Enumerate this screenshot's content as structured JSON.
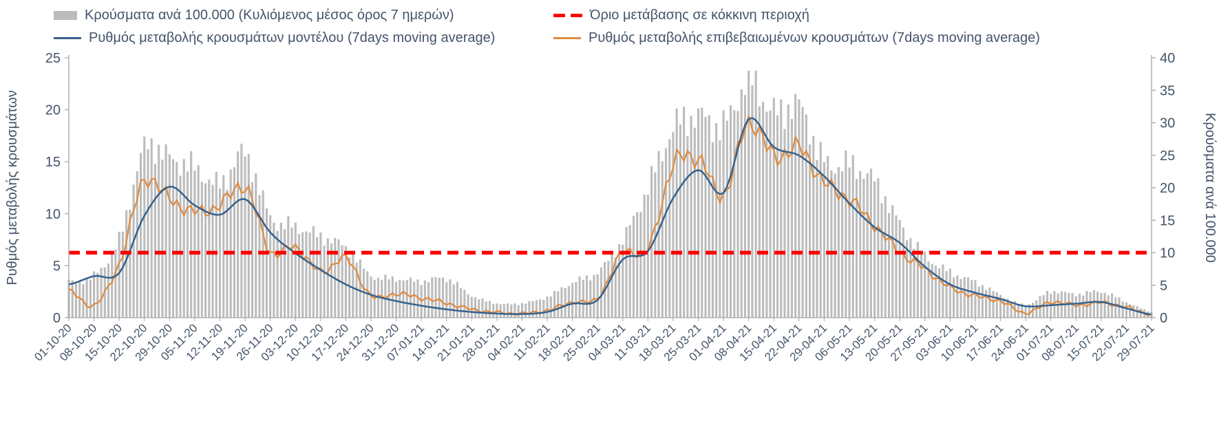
{
  "page": {
    "background": "#ffffff",
    "text_color": "#44546A"
  },
  "legend": {
    "position": "top",
    "items": [
      {
        "id": "cases-bars",
        "series_index": 0,
        "swatch": "bar"
      },
      {
        "id": "threshold",
        "series_index": 3,
        "swatch": "dashed-line"
      },
      {
        "id": "model-line",
        "series_index": 1,
        "swatch": "line"
      },
      {
        "id": "confirmed-line",
        "series_index": 2,
        "swatch": "line"
      }
    ]
  },
  "chart_data": {
    "type": "bar",
    "title": "",
    "legend_position": "top",
    "grid": false,
    "categories": [
      "01-10-20",
      "08-10-20",
      "15-10-20",
      "22-10-20",
      "29-10-20",
      "05-11-20",
      "12-11-20",
      "19-11-20",
      "26-11-20",
      "03-12-20",
      "10-12-20",
      "17-12-20",
      "24-12-20",
      "31-12-20",
      "07-01-21",
      "14-01-21",
      "21-01-21",
      "28-01-21",
      "04-02-21",
      "11-02-21",
      "18-02-21",
      "25-02-21",
      "04-03-21",
      "11-03-21",
      "18-03-21",
      "25-03-21",
      "01-04-21",
      "08-04-21",
      "15-04-21",
      "22-04-21",
      "29-04-21",
      "06-05-21",
      "13-05-21",
      "20-05-21",
      "27-05-21",
      "03-06-21",
      "10-06-21",
      "17-06-21",
      "24-06-21",
      "01-07-21",
      "08-07-21",
      "15-07-21",
      "22-07-21",
      "29-07-21"
    ],
    "series": [
      {
        "name": "Κρούσματα ανά 100.000 (Κυλιόμενος μέσος όρος 7 ημερών)",
        "kind": "bar",
        "axis": "right",
        "color": "#bcbcbc",
        "values": [
          5.5,
          6.5,
          12,
          26,
          24.5,
          23,
          20.5,
          25.2,
          15.5,
          14,
          12.5,
          10.8,
          6.5,
          6,
          5.6,
          6,
          3.4,
          2.2,
          2.2,
          3.2,
          5.4,
          7,
          12,
          20,
          29,
          31,
          29.5,
          36.5,
          31.5,
          32.5,
          24,
          23.5,
          21,
          14.5,
          9.5,
          7,
          5.5,
          3.5,
          2,
          4,
          3.6,
          4,
          2.4,
          0.9
        ]
      },
      {
        "name": "Ρυθμός μεταβολής κρουσμάτων μοντέλου (7days moving average)",
        "kind": "line",
        "axis": "left",
        "color": "#35618e",
        "values": [
          3.2,
          4.0,
          4.3,
          9.8,
          12.6,
          10.8,
          9.9,
          11.4,
          8.2,
          6.2,
          4.6,
          3.2,
          2.2,
          1.6,
          1.15,
          0.8,
          0.55,
          0.4,
          0.35,
          0.55,
          1.35,
          1.7,
          5.6,
          6.4,
          11.5,
          14.2,
          12.0,
          19.1,
          16.4,
          15.6,
          13.6,
          11.0,
          8.7,
          7.2,
          4.9,
          3.2,
          2.4,
          1.8,
          1.1,
          1.2,
          1.35,
          1.5,
          0.9,
          0.3
        ]
      },
      {
        "name": "Ρυθμός μεταβολής επιβεβαιωμένων κρουσμάτων (7days moving average)",
        "kind": "line",
        "axis": "left",
        "color": "#df8a3e",
        "values": [
          2.6,
          1.2,
          5.2,
          13.2,
          11.4,
          10.2,
          10.8,
          12.6,
          6.4,
          6.8,
          4.4,
          5.7,
          2.1,
          2.3,
          1.9,
          1.4,
          0.8,
          0.5,
          0.4,
          0.7,
          1.5,
          1.9,
          6.3,
          6.6,
          14.6,
          15.3,
          11.8,
          18.8,
          15.5,
          16.3,
          13.0,
          11.4,
          8.9,
          6.3,
          4.7,
          2.9,
          2.1,
          1.6,
          0.45,
          1.5,
          1.2,
          1.45,
          1.0,
          0.3
        ]
      },
      {
        "name": "Όριο μετάβασης σε κόκκινη περιοχή",
        "kind": "threshold-line",
        "axis": "left",
        "color": "#ff0000",
        "value": 6.25,
        "value_right_axis": 10
      }
    ],
    "axes": {
      "left": {
        "label": "Ρυθμός μεταβολής κρουσμάτων",
        "min": 0,
        "max": 25,
        "ticks": [
          0,
          5,
          10,
          15,
          20,
          25
        ]
      },
      "right": {
        "label": "Κρούσματα ανά 100.000",
        "min": 0,
        "max": 40,
        "ticks": [
          0,
          5,
          10,
          15,
          20,
          25,
          30,
          35,
          40
        ]
      }
    }
  }
}
